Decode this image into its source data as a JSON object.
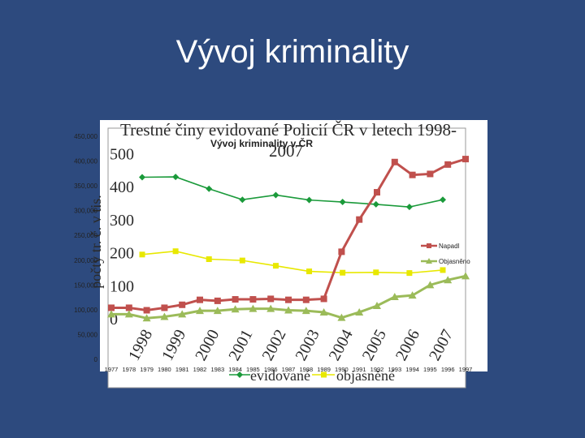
{
  "slide": {
    "title": "Vývoj kriminality"
  },
  "chart_data": [
    {
      "type": "line",
      "title": "Vývoj kriminality v ČR",
      "categories": [
        "1977",
        "1978",
        "1979",
        "1980",
        "1981",
        "1982",
        "1983",
        "1984",
        "1985",
        "1986",
        "1987",
        "1988",
        "1989",
        "1990",
        "1991",
        "1992",
        "1993",
        "1994",
        "1995",
        "1996",
        "1997"
      ],
      "ylim": [
        0,
        450000
      ],
      "yticks": [
        "0",
        "50,000",
        "100,000",
        "150,000",
        "200,000",
        "250,000",
        "300,000",
        "350,000",
        "400,000",
        "450,000"
      ],
      "legend_position": "right",
      "series": [
        {
          "name": "Napadl",
          "color": "#c0504d",
          "marker": "square",
          "values": [
            104000,
            104000,
            99000,
            104000,
            110000,
            120000,
            118000,
            121000,
            121000,
            122000,
            120000,
            120000,
            122000,
            217000,
            282000,
            337000,
            398000,
            372000,
            374000,
            393000,
            404000
          ]
        },
        {
          "name": "Objasněno",
          "color": "#9bbb59",
          "marker": "triangle",
          "values": [
            91000,
            91000,
            83000,
            86000,
            91000,
            98000,
            98000,
            101000,
            102000,
            102000,
            99000,
            98000,
            95000,
            84000,
            95000,
            108000,
            126000,
            129000,
            150000,
            160000,
            168000
          ]
        }
      ]
    },
    {
      "type": "line",
      "title": "Trestné činy evidované Policií ČR v letech 1998-2007",
      "ylabel": "počty tr. č. v tis.",
      "categories": [
        "1998",
        "1999",
        "2000",
        "2001",
        "2002",
        "2003",
        "2004",
        "2005",
        "2006",
        "2007"
      ],
      "yticks": [
        "0",
        "100",
        "200",
        "300",
        "400",
        "500"
      ],
      "ylim": [
        0,
        550
      ],
      "legend_position": "bottom",
      "series": [
        {
          "name": "evidované",
          "color": "#1a9a3a",
          "marker": "diamond",
          "values": [
            426,
            427,
            391,
            358,
            372,
            357,
            351,
            344,
            336,
            358
          ]
        },
        {
          "name": "objasněné",
          "color": "#e8e800",
          "marker": "square",
          "values": [
            192,
            202,
            178,
            174,
            158,
            141,
            137,
            138,
            136,
            145
          ]
        }
      ]
    }
  ]
}
